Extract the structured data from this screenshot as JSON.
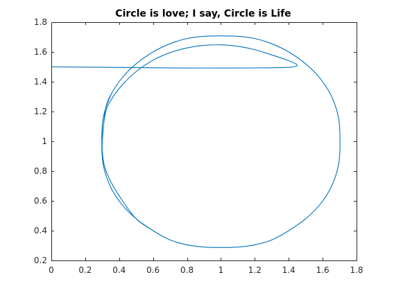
{
  "chart_data": {
    "type": "line",
    "title": "Circle is love; I say, Circle is Life",
    "xlabel": "",
    "ylabel": "",
    "xlim": [
      0,
      1.8
    ],
    "ylim": [
      0.2,
      1.8
    ],
    "xticks": [
      0,
      0.2,
      0.4,
      0.6,
      0.8,
      1,
      1.2,
      1.4,
      1.6,
      1.8
    ],
    "yticks": [
      0.2,
      0.4,
      0.6,
      0.8,
      1,
      1.2,
      1.4,
      1.6,
      1.8
    ],
    "xtick_labels": [
      "0",
      "0.2",
      "0.4",
      "0.6",
      "0.8",
      "1",
      "1.2",
      "1.4",
      "1.6",
      "1.8"
    ],
    "ytick_labels": [
      "0.2",
      "0.4",
      "0.6",
      "0.8",
      "1",
      "1.2",
      "1.4",
      "1.6",
      "1.8"
    ],
    "grid": false,
    "line_color": "#0072BD",
    "series": [
      {
        "x": [
          0,
          0.2,
          0.4,
          0.6,
          0.8,
          1.0,
          1.2,
          1.3,
          1.4,
          1.44,
          1.45,
          1.43,
          1.38,
          1.3,
          1.2,
          1.1,
          1.0,
          0.9,
          0.8,
          0.7,
          0.6,
          0.5,
          0.42,
          0.36,
          0.32,
          0.3,
          0.31,
          0.35,
          0.42,
          0.5,
          0.6,
          0.7,
          0.8,
          0.9,
          1.0,
          1.1,
          1.2,
          1.3,
          1.4,
          1.5,
          1.58,
          1.64,
          1.68,
          1.7,
          1.7,
          1.68,
          1.64,
          1.58,
          1.5,
          1.4,
          1.3,
          1.2,
          1.1,
          1.0,
          0.9,
          0.8,
          0.7,
          0.6,
          0.5,
          0.42,
          0.36,
          0.32,
          0.3,
          0.3,
          0.32,
          0.36,
          0.42,
          0.5,
          0.6,
          0.7,
          0.8,
          0.9,
          1.0,
          1.1,
          1.2,
          1.3,
          1.4,
          1.5,
          1.58,
          1.64,
          1.68,
          1.7,
          1.7,
          1.68,
          1.64,
          1.58,
          1.5,
          1.4,
          1.3,
          1.2,
          1.1,
          1.0,
          0.9,
          0.8,
          0.7,
          0.6,
          0.5,
          0.42,
          0.36,
          0.32,
          0.3
        ],
        "y": [
          1.5,
          1.498,
          1.496,
          1.494,
          1.492,
          1.492,
          1.493,
          1.494,
          1.497,
          1.503,
          1.512,
          1.527,
          1.55,
          1.58,
          1.615,
          1.638,
          1.648,
          1.644,
          1.627,
          1.595,
          1.545,
          1.468,
          1.381,
          1.292,
          1.194,
          1.0,
          0.85,
          0.73,
          0.6,
          0.48,
          0.4,
          0.338,
          0.305,
          0.29,
          0.287,
          0.29,
          0.305,
          0.338,
          0.4,
          0.48,
          0.57,
          0.67,
          0.78,
          0.9,
          1.1,
          1.22,
          1.33,
          1.43,
          1.52,
          1.6,
          1.655,
          1.69,
          1.705,
          1.708,
          1.705,
          1.69,
          1.655,
          1.6,
          1.52,
          1.43,
          1.33,
          1.22,
          1.1,
          0.9,
          0.78,
          0.67,
          0.57,
          0.48,
          0.4,
          0.338,
          0.305,
          0.29,
          0.287,
          0.29,
          0.305,
          0.338,
          0.4,
          0.48,
          0.57,
          0.67,
          0.78,
          0.9,
          1.1,
          1.22,
          1.33,
          1.43,
          1.52,
          1.6,
          1.655,
          1.69,
          1.705,
          1.708,
          1.705,
          1.69,
          1.655,
          1.6,
          1.52,
          1.43,
          1.33,
          1.22,
          1.0
        ]
      }
    ]
  }
}
